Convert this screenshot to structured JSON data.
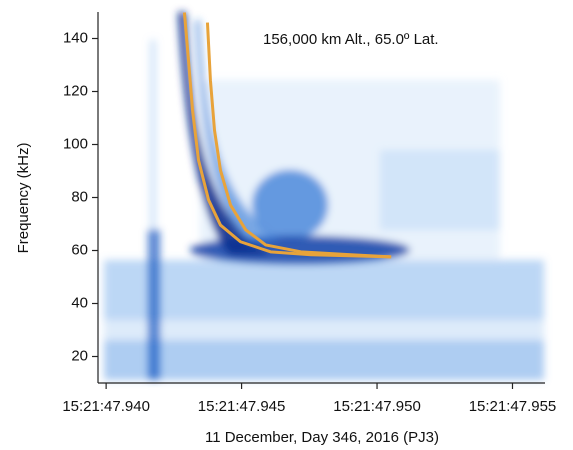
{
  "chart_data": {
    "type": "line",
    "annotation": "156,000 km Alt., 65.0º Lat.",
    "xlabel": "11 December, Day 346, 2016 (PJ3)",
    "ylabel": "Frequency (kHz)",
    "xlim": [
      47.9397,
      47.9562
    ],
    "ylim": [
      10,
      150
    ],
    "xticks": [
      {
        "value": 47.94,
        "label": "15:21:47.940"
      },
      {
        "value": 47.945,
        "label": "15:21:47.945"
      },
      {
        "value": 47.95,
        "label": "15:21:47.950"
      },
      {
        "value": 47.955,
        "label": "15:21:47.955"
      }
    ],
    "yticks": [
      20,
      40,
      60,
      80,
      100,
      120,
      140
    ],
    "series": [
      {
        "color": "#e8a33a",
        "x": [
          47.94289,
          47.94304,
          47.94319,
          47.94341,
          47.94378,
          47.94422,
          47.94496,
          47.94607,
          47.94756,
          47.95052
        ],
        "values": [
          149.8,
          131.7,
          112.9,
          94.1,
          79.1,
          69.6,
          63.3,
          59.5,
          58.4,
          57.6
        ]
      },
      {
        "color": "#e8a33a",
        "x": [
          47.94374,
          47.94385,
          47.944,
          47.94422,
          47.94459,
          47.94515,
          47.94589,
          47.94719,
          47.94904,
          47.95052
        ],
        "values": [
          146.0,
          124.2,
          105.4,
          90.3,
          77.2,
          67.8,
          62.1,
          59.5,
          58.4,
          57.6
        ]
      }
    ]
  }
}
